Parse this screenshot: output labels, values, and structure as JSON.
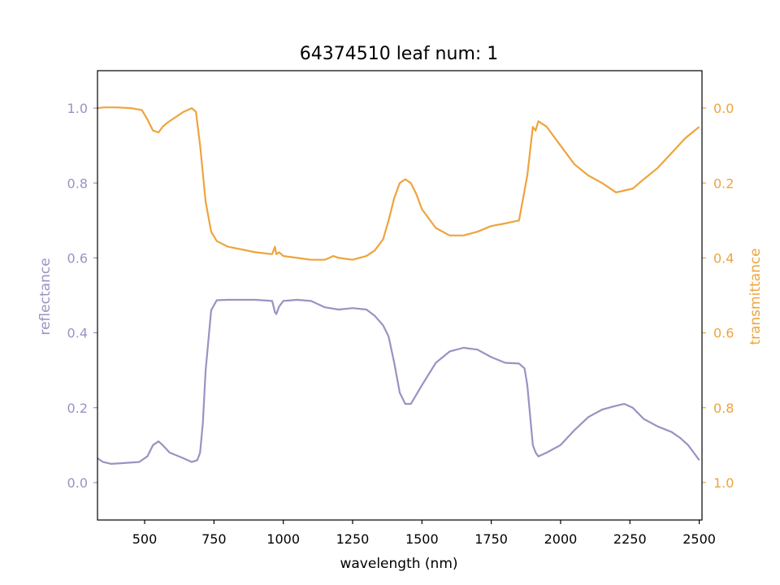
{
  "chart_data": {
    "type": "line",
    "title": "64374510 leaf num: 1",
    "xlabel": "wavelength (nm)",
    "ylabel_left": "reflectance",
    "ylabel_right": "transmittance",
    "xlim": [
      330,
      2510
    ],
    "ylim_left": [
      -0.1,
      1.1
    ],
    "ylim_right": [
      1.1,
      -0.1
    ],
    "right_axis_inverted": true,
    "x_ticks": [
      500,
      750,
      1000,
      1250,
      1500,
      1750,
      2000,
      2250,
      2500
    ],
    "y_ticks_left": [
      0.0,
      0.2,
      0.4,
      0.6,
      0.8,
      1.0
    ],
    "y_ticks_right": [
      0.0,
      0.2,
      0.4,
      0.6,
      0.8,
      1.0
    ],
    "x_tick_labels": [
      "500",
      "750",
      "1000",
      "1250",
      "1500",
      "1750",
      "2000",
      "2250",
      "2500"
    ],
    "y_tick_labels_left": [
      "0.0",
      "0.2",
      "0.4",
      "0.6",
      "0.8",
      "1.0"
    ],
    "y_tick_labels_right": [
      "0.0",
      "0.2",
      "0.4",
      "0.6",
      "0.8",
      "1.0"
    ],
    "grid": false,
    "series": [
      {
        "axis": "left",
        "color": "#9893c3",
        "x": [
          330,
          350,
          380,
          420,
          480,
          510,
          530,
          550,
          565,
          590,
          640,
          670,
          690,
          700,
          710,
          720,
          740,
          760,
          800,
          900,
          960,
          970,
          975,
          985,
          1000,
          1050,
          1100,
          1150,
          1200,
          1250,
          1300,
          1330,
          1360,
          1380,
          1400,
          1420,
          1440,
          1460,
          1500,
          1550,
          1600,
          1650,
          1700,
          1750,
          1800,
          1850,
          1870,
          1880,
          1890,
          1900,
          1910,
          1920,
          1950,
          2000,
          2050,
          2100,
          2150,
          2200,
          2230,
          2260,
          2300,
          2350,
          2400,
          2430,
          2460,
          2480,
          2500
        ],
        "y": [
          0.065,
          0.055,
          0.05,
          0.052,
          0.055,
          0.07,
          0.1,
          0.11,
          0.1,
          0.08,
          0.065,
          0.055,
          0.06,
          0.08,
          0.16,
          0.3,
          0.46,
          0.487,
          0.488,
          0.488,
          0.485,
          0.455,
          0.45,
          0.47,
          0.485,
          0.488,
          0.485,
          0.468,
          0.462,
          0.466,
          0.462,
          0.445,
          0.42,
          0.39,
          0.32,
          0.24,
          0.21,
          0.21,
          0.26,
          0.32,
          0.35,
          0.36,
          0.355,
          0.335,
          0.32,
          0.318,
          0.305,
          0.26,
          0.18,
          0.1,
          0.08,
          0.07,
          0.08,
          0.1,
          0.14,
          0.175,
          0.195,
          0.205,
          0.21,
          0.2,
          0.17,
          0.15,
          0.135,
          0.12,
          0.1,
          0.08,
          0.06
        ]
      },
      {
        "axis": "right",
        "color": "#eea43d",
        "x": [
          330,
          350,
          400,
          450,
          490,
          510,
          530,
          550,
          565,
          580,
          600,
          640,
          670,
          685,
          700,
          720,
          740,
          760,
          800,
          900,
          960,
          970,
          975,
          985,
          1000,
          1050,
          1100,
          1150,
          1180,
          1200,
          1250,
          1300,
          1330,
          1360,
          1380,
          1400,
          1420,
          1440,
          1460,
          1480,
          1500,
          1550,
          1600,
          1650,
          1700,
          1750,
          1800,
          1850,
          1880,
          1900,
          1910,
          1920,
          1950,
          2000,
          2050,
          2100,
          2150,
          2200,
          2230,
          2260,
          2300,
          2350,
          2400,
          2450,
          2500
        ],
        "y": [
          0.0,
          -0.002,
          -0.002,
          0.0,
          0.005,
          0.03,
          0.06,
          0.065,
          0.05,
          0.04,
          0.03,
          0.01,
          0.0,
          0.01,
          0.1,
          0.25,
          0.33,
          0.355,
          0.37,
          0.385,
          0.39,
          0.37,
          0.39,
          0.385,
          0.395,
          0.4,
          0.405,
          0.405,
          0.395,
          0.4,
          0.405,
          0.395,
          0.38,
          0.35,
          0.3,
          0.24,
          0.2,
          0.19,
          0.2,
          0.23,
          0.27,
          0.32,
          0.34,
          0.34,
          0.33,
          0.315,
          0.308,
          0.3,
          0.18,
          0.05,
          0.06,
          0.035,
          0.05,
          0.1,
          0.15,
          0.18,
          0.2,
          0.225,
          0.22,
          0.215,
          0.19,
          0.16,
          0.12,
          0.08,
          0.05
        ]
      }
    ]
  }
}
